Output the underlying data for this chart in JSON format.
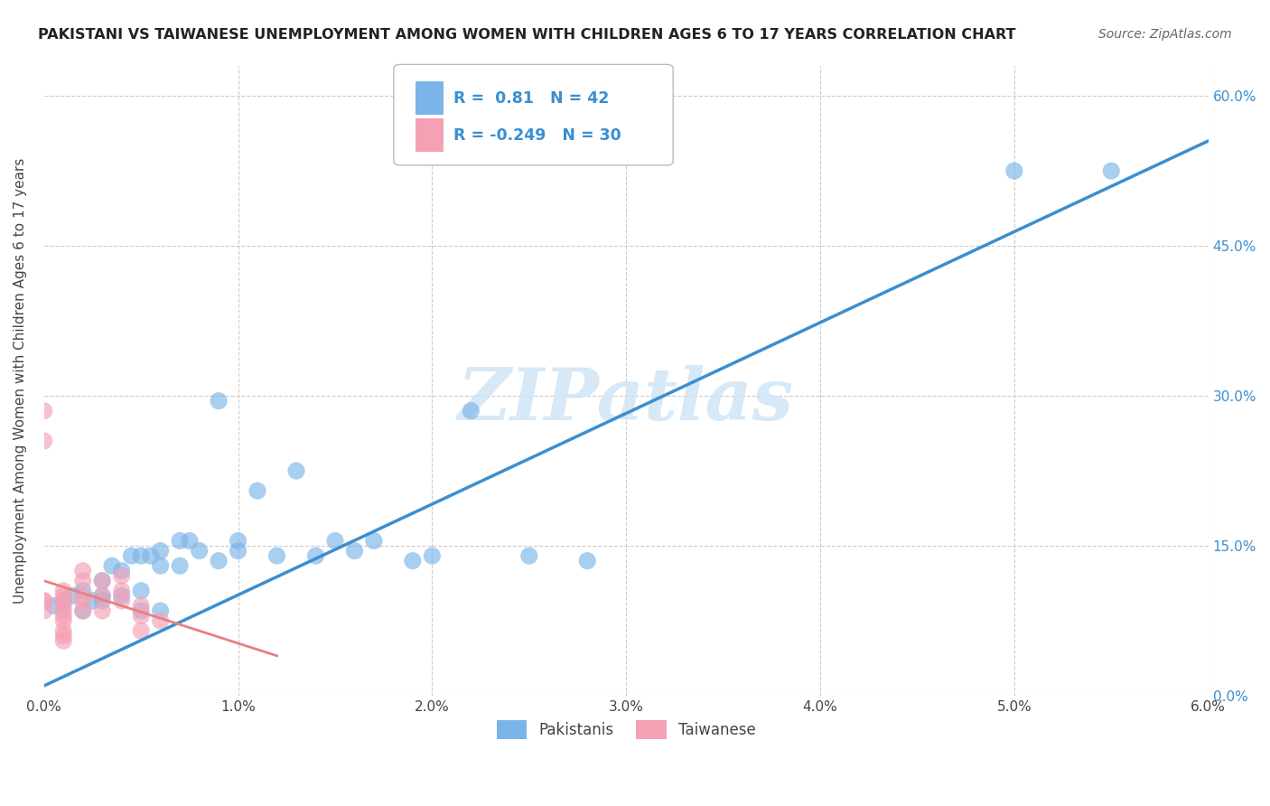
{
  "title": "PAKISTANI VS TAIWANESE UNEMPLOYMENT AMONG WOMEN WITH CHILDREN AGES 6 TO 17 YEARS CORRELATION CHART",
  "source": "Source: ZipAtlas.com",
  "ylabel": "Unemployment Among Women with Children Ages 6 to 17 years",
  "xlim": [
    0.0,
    0.06
  ],
  "ylim": [
    0.0,
    0.63
  ],
  "xticks": [
    0.0,
    0.01,
    0.02,
    0.03,
    0.04,
    0.05,
    0.06
  ],
  "xticklabels": [
    "0.0%",
    "1.0%",
    "2.0%",
    "3.0%",
    "4.0%",
    "5.0%",
    "6.0%"
  ],
  "yticks": [
    0.0,
    0.15,
    0.3,
    0.45,
    0.6
  ],
  "yticklabels": [
    "0.0%",
    "15.0%",
    "30.0%",
    "45.0%",
    "60.0%"
  ],
  "blue_R": 0.81,
  "blue_N": 42,
  "pink_R": -0.249,
  "pink_N": 30,
  "legend_label1": "Pakistanis",
  "legend_label2": "Taiwanese",
  "blue_color": "#7ab4e8",
  "pink_color": "#f5a0b5",
  "blue_line_color": "#3a8fd0",
  "pink_line_color": "#e88080",
  "watermark_color": "#d0e4f5",
  "background_color": "#ffffff",
  "blue_line_x0": 0.0,
  "blue_line_y0": 0.01,
  "blue_line_x1": 0.06,
  "blue_line_y1": 0.555,
  "pink_line_x0": 0.0,
  "pink_line_y0": 0.115,
  "pink_line_x1": 0.012,
  "pink_line_y1": 0.04,
  "blue_points_x": [
    0.0005,
    0.001,
    0.0015,
    0.002,
    0.002,
    0.0025,
    0.003,
    0.003,
    0.003,
    0.0035,
    0.004,
    0.004,
    0.0045,
    0.005,
    0.005,
    0.005,
    0.0055,
    0.006,
    0.006,
    0.006,
    0.007,
    0.007,
    0.0075,
    0.008,
    0.009,
    0.009,
    0.01,
    0.01,
    0.011,
    0.012,
    0.013,
    0.014,
    0.015,
    0.016,
    0.017,
    0.019,
    0.02,
    0.022,
    0.025,
    0.028,
    0.05,
    0.055
  ],
  "blue_points_y": [
    0.09,
    0.095,
    0.1,
    0.085,
    0.105,
    0.095,
    0.095,
    0.1,
    0.115,
    0.13,
    0.1,
    0.125,
    0.14,
    0.085,
    0.105,
    0.14,
    0.14,
    0.085,
    0.13,
    0.145,
    0.13,
    0.155,
    0.155,
    0.145,
    0.135,
    0.295,
    0.145,
    0.155,
    0.205,
    0.14,
    0.225,
    0.14,
    0.155,
    0.145,
    0.155,
    0.135,
    0.14,
    0.285,
    0.14,
    0.135,
    0.525,
    0.525
  ],
  "pink_points_x": [
    0.0,
    0.0,
    0.0,
    0.0,
    0.0,
    0.001,
    0.001,
    0.001,
    0.001,
    0.001,
    0.001,
    0.001,
    0.001,
    0.001,
    0.001,
    0.002,
    0.002,
    0.002,
    0.002,
    0.002,
    0.003,
    0.003,
    0.003,
    0.004,
    0.004,
    0.004,
    0.005,
    0.005,
    0.005,
    0.006
  ],
  "pink_points_y": [
    0.285,
    0.255,
    0.095,
    0.095,
    0.085,
    0.095,
    0.1,
    0.105,
    0.085,
    0.08,
    0.075,
    0.065,
    0.06,
    0.055,
    0.09,
    0.1,
    0.115,
    0.125,
    0.095,
    0.085,
    0.115,
    0.1,
    0.085,
    0.095,
    0.105,
    0.12,
    0.09,
    0.08,
    0.065,
    0.075
  ]
}
